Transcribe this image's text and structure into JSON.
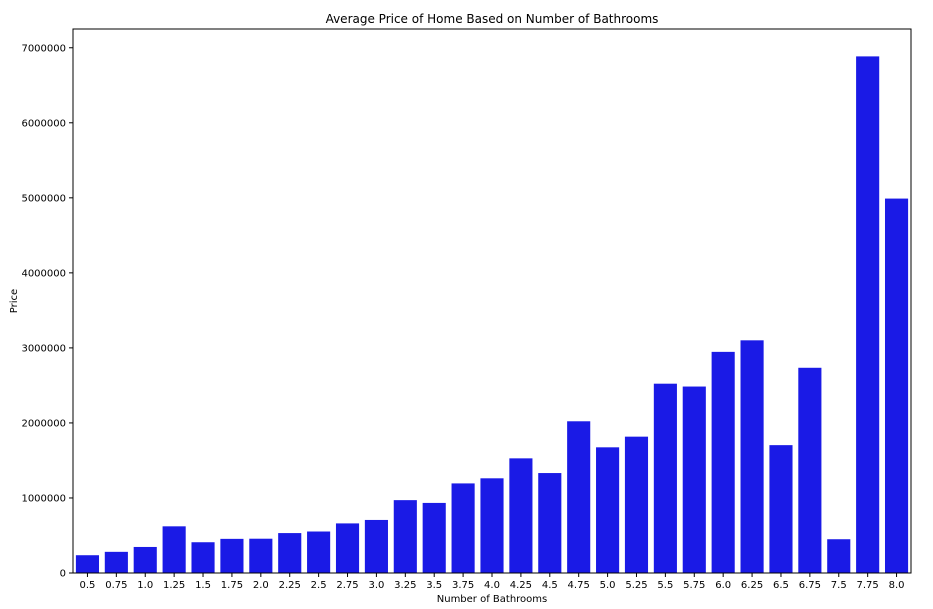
{
  "chart_data": {
    "type": "bar",
    "title": "Average Price of Home Based on Number of Bathrooms",
    "xlabel": "Number of Bathrooms",
    "ylabel": "Price",
    "categories": [
      "0.5",
      "0.75",
      "1.0",
      "1.25",
      "1.5",
      "1.75",
      "2.0",
      "2.25",
      "2.5",
      "2.75",
      "3.0",
      "3.25",
      "3.5",
      "3.75",
      "4.0",
      "4.25",
      "4.5",
      "4.75",
      "5.0",
      "5.25",
      "5.5",
      "5.75",
      "6.0",
      "6.25",
      "6.5",
      "6.75",
      "7.5",
      "7.75",
      "8.0"
    ],
    "values": [
      237000,
      282000,
      347000,
      622000,
      410000,
      455000,
      457000,
      532000,
      553000,
      661000,
      707000,
      971000,
      934000,
      1194000,
      1262000,
      1528000,
      1332000,
      2022000,
      1675000,
      1817000,
      2523000,
      2485000,
      2947000,
      3101000,
      1704000,
      2735000,
      450000,
      6885000,
      4990000
    ],
    "ylim": [
      0,
      7250000
    ],
    "yticks": [
      0,
      1000000,
      2000000,
      3000000,
      4000000,
      5000000,
      6000000,
      7000000
    ],
    "ytick_labels": [
      "0",
      "1000000",
      "2000000",
      "3000000",
      "4000000",
      "5000000",
      "6000000",
      "7000000"
    ],
    "bar_color": "#1a1ae6",
    "grid": false,
    "legend": "none"
  }
}
